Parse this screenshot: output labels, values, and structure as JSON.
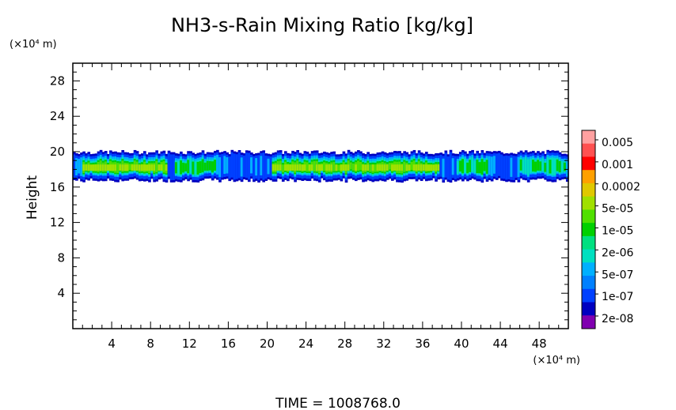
{
  "chart_data": {
    "type": "heatmap",
    "title": "NH3-s-Rain Mixing Ratio [kg/kg]",
    "xlabel": "",
    "ylabel": "Height",
    "x_unit": "(×10⁴ m)",
    "y_unit": "(×10⁴ m)",
    "xlim": [
      0,
      51
    ],
    "ylim": [
      0,
      30
    ],
    "x_ticks": [
      4,
      8,
      12,
      16,
      20,
      24,
      28,
      32,
      36,
      40,
      44,
      48
    ],
    "y_ticks": [
      4,
      8,
      12,
      16,
      20,
      24,
      28
    ],
    "colorbar": {
      "labels": [
        "0.005",
        "0.001",
        "0.0002",
        "5e-05",
        "1e-05",
        "2e-06",
        "5e-07",
        "1e-07",
        "2e-08"
      ],
      "colors": [
        "#ffa0a0",
        "#ff5050",
        "#ff0000",
        "#ffa000",
        "#e0c800",
        "#a0e000",
        "#50e000",
        "#00d000",
        "#00e080",
        "#00e0c0",
        "#00b0ff",
        "#0080ff",
        "#0040ff",
        "#0000c0",
        "#8000b0"
      ]
    },
    "layer": {
      "base_height": 17.0,
      "top_height": 19.7,
      "core_height": 18.2,
      "strong_segments": [
        [
          0.8,
          9.5
        ],
        [
          20.5,
          37.5
        ]
      ],
      "weak_segments": [
        [
          10.5,
          14.5
        ],
        [
          39.5,
          42.5
        ],
        [
          46,
          50.5
        ]
      ]
    }
  },
  "footer": {
    "time_label": "TIME  =  1008768.0"
  }
}
